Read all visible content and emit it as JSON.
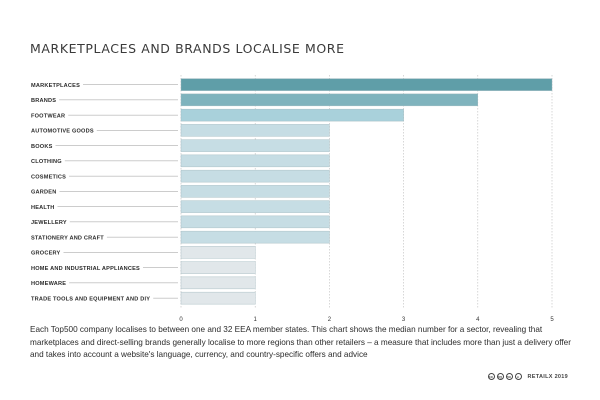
{
  "chart_data": {
    "type": "bar",
    "orientation": "horizontal",
    "title": "MARKETPLACES AND BRANDS LOCALISE MORE",
    "categories": [
      "MARKETPLACES",
      "BRANDS",
      "FOOTWEAR",
      "AUTOMOTIVE GOODS",
      "BOOKS",
      "CLOTHING",
      "COSMETICS",
      "GARDEN",
      "HEALTH",
      "JEWELLERY",
      "STATIONERY AND CRAFT",
      "GROCERY",
      "HOME AND INDUSTRIAL APPLIANCES",
      "HOMEWARE",
      "TRADE TOOLS AND EQUIPMENT AND DIY"
    ],
    "values": [
      5,
      4,
      3,
      2,
      2,
      2,
      2,
      2,
      2,
      2,
      2,
      1,
      1,
      1,
      1
    ],
    "xlim": [
      0,
      5
    ],
    "x_ticks": [
      "0",
      "1",
      "2",
      "3",
      "4",
      "5"
    ],
    "grid": "vertical dashed",
    "colors": {
      "5": "#5f9ea8",
      "4": "#7fb3bd",
      "3": "#a9d1db",
      "2": "#c6dde4",
      "1": "#e1e7ea"
    }
  },
  "caption": "Each Top500 company localises to between one and 32 EEA member states. This chart shows the median number for a sector, revealing that marketplaces and direct-selling brands generally localise to more regions than other retailers – a measure that includes more than just a delivery offer and takes into account a website's language, currency, and country-specific offers and advice",
  "footer": {
    "license_icons": [
      "cc",
      "by",
      "nc",
      "="
    ],
    "credit": "RETAILX 2019"
  }
}
